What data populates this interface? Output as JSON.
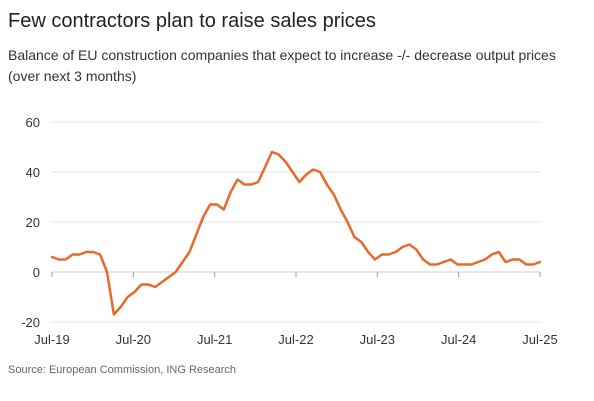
{
  "chart_data": {
    "type": "line",
    "title": "Few contractors plan to raise sales prices",
    "subtitle": "Balance of EU construction companies that expect to increase -/- decrease output prices (over next 3 months)",
    "source": "Source: European Commission, ING Research",
    "xlabel": "",
    "ylabel": "",
    "ylim": [
      -20,
      60
    ],
    "yticks": [
      -20,
      0,
      20,
      40,
      60
    ],
    "xticks": [
      "Jul-19",
      "Jul-20",
      "Jul-21",
      "Jul-22",
      "Jul-23",
      "Jul-24",
      "Jul-25"
    ],
    "x_start": "Jul-19",
    "x_end": "Jul-25",
    "grid": true,
    "legend": "none",
    "series": [
      {
        "color": "#e8692a",
        "values": [
          6,
          5,
          5,
          7,
          7,
          8,
          8,
          7,
          0,
          -17,
          -14,
          -10,
          -8,
          -5,
          -5,
          -6,
          -4,
          -2,
          0,
          4,
          8,
          15,
          22,
          27,
          27,
          25,
          32,
          37,
          35,
          35,
          36,
          42,
          48,
          47,
          44,
          40,
          36,
          39,
          41,
          40,
          35,
          31,
          25,
          20,
          14,
          12,
          8,
          5,
          7,
          7,
          8,
          10,
          11,
          9,
          5,
          3,
          3,
          4,
          5,
          3,
          3,
          3,
          4,
          5,
          7,
          8,
          4,
          5,
          5,
          3,
          3,
          4
        ]
      }
    ]
  }
}
